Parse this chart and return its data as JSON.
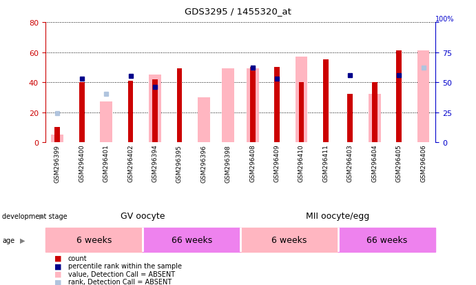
{
  "title": "GDS3295 / 1455320_at",
  "samples": [
    "GSM296399",
    "GSM296400",
    "GSM296401",
    "GSM296402",
    "GSM296394",
    "GSM296395",
    "GSM296396",
    "GSM296398",
    "GSM296408",
    "GSM296409",
    "GSM296410",
    "GSM296411",
    "GSM296403",
    "GSM296404",
    "GSM296405",
    "GSM296406"
  ],
  "count": [
    10,
    40,
    null,
    41,
    42,
    49,
    null,
    null,
    50,
    50,
    40,
    55,
    32,
    40,
    61,
    null
  ],
  "percentile_rank": [
    null,
    53,
    null,
    55,
    46,
    null,
    null,
    null,
    62,
    53,
    null,
    null,
    56,
    null,
    56,
    null
  ],
  "absent_value": [
    5,
    null,
    27,
    null,
    45,
    null,
    30,
    49,
    49,
    null,
    57,
    null,
    null,
    32,
    null,
    61
  ],
  "absent_rank": [
    24,
    null,
    40,
    null,
    null,
    null,
    null,
    null,
    62,
    null,
    null,
    null,
    null,
    null,
    null,
    62
  ],
  "ylim_left": [
    0,
    80
  ],
  "ylim_right": [
    0,
    100
  ],
  "yticks_left": [
    0,
    20,
    40,
    60,
    80
  ],
  "yticks_right": [
    0,
    25,
    50,
    75,
    100
  ],
  "count_color": "#CC0000",
  "percentile_color": "#00008B",
  "absent_value_color": "#FFB6C1",
  "absent_rank_color": "#B0C4DE",
  "left_axis_color": "#CC0000",
  "right_axis_color": "#0000CC",
  "xticklabel_bg": "#C8C8C8",
  "dev_stage_color": "#90EE90",
  "age_6w_color": "#FFB6C1",
  "age_66w_color": "#EE82EE",
  "dev_stage_separator": 8,
  "age_separators": [
    4,
    8,
    12
  ]
}
